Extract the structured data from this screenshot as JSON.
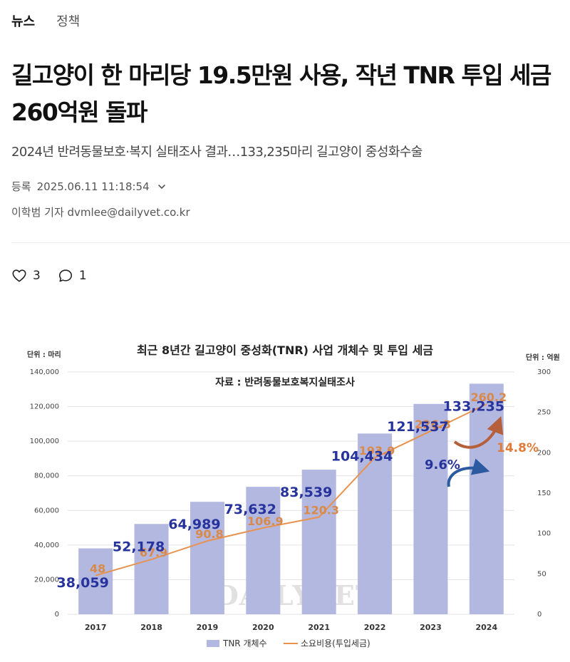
{
  "tabs": [
    {
      "label": "뉴스"
    },
    {
      "label": "정책"
    }
  ],
  "article": {
    "headline_line1": "길고양이 한 마리당 19.5만원 사용, 작년 TNR 투입 세금",
    "headline_line2": "260억원 돌파",
    "subtitle": "2024년 반려동물보호·복지 실태조사 결과…133,235마리 길고양이 중성화수술",
    "registered_label": "등록",
    "registered_time": "2025.06.11 11:18:54",
    "byline": "이학범 기자 dvmlee@dailyvet.co.kr"
  },
  "reactions": {
    "likes": "3",
    "comments": "1"
  },
  "chart_data": {
    "type": "bar",
    "title": "최근 8년간 길고양이 중성화(TNR) 사업 개체수 및 투입 세금",
    "source": "자료 : 반려동물보호복지실태조사",
    "left_unit": "단위 : 마리",
    "right_unit": "단위 : 억원",
    "categories": [
      "2017",
      "2018",
      "2019",
      "2020",
      "2021",
      "2022",
      "2023",
      "2024"
    ],
    "series": [
      {
        "name": "TNR 개체수",
        "kind": "bar",
        "axis": "left",
        "values": [
          38059,
          52178,
          64989,
          73632,
          83539,
          104434,
          121537,
          133235
        ],
        "labels": [
          "38,059",
          "52,178",
          "64,989",
          "73,632",
          "83,539",
          "104,434",
          "121,537",
          "133,235"
        ]
      },
      {
        "name": "소요비용(투입세금)",
        "kind": "line",
        "axis": "right",
        "values": [
          48,
          67.9,
          90.8,
          106.9,
          120.3,
          193.9,
          226.8,
          260.2
        ],
        "labels": [
          "48",
          "67.9",
          "90.8",
          "106.9",
          "120.3",
          "193.9",
          "226.8",
          "260.2"
        ]
      }
    ],
    "left_axis": {
      "min": 0,
      "max": 140000,
      "ticks": [
        "0",
        "20,000",
        "40,000",
        "60,000",
        "80,000",
        "100,000",
        "120,000",
        "140,000"
      ]
    },
    "right_axis": {
      "min": 0,
      "max": 300,
      "ticks": [
        "0",
        "50",
        "100",
        "150",
        "200",
        "250",
        "300"
      ]
    },
    "annotations": {
      "count_growth": "9.6%",
      "cost_growth": "14.8%"
    },
    "watermark": "DAILYVET",
    "colors": {
      "bar": "#b3b8e0",
      "line": "#e8924f",
      "count_label": "#27339c",
      "cost_label": "#d98a4a",
      "grid": "#e3e3e3"
    }
  }
}
